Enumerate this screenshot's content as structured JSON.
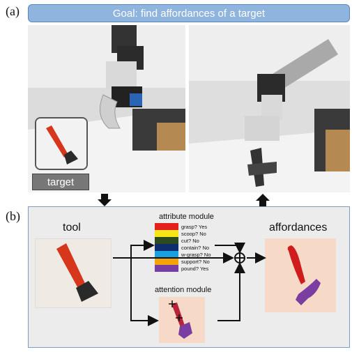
{
  "panels": {
    "a": {
      "letter": "(a)"
    },
    "b": {
      "letter": "(b)"
    }
  },
  "goal": {
    "text": "Goal: find affordances of a target"
  },
  "target": {
    "label": "target"
  },
  "diagram": {
    "tool_label": "tool",
    "attribute_module_label": "attribute module",
    "attention_module_label": "attention module",
    "affordances_label": "affordances",
    "attributes": [
      {
        "text": "grasp? Yes",
        "color": "#e3201b"
      },
      {
        "text": "scoop? No",
        "color": "#f7e419"
      },
      {
        "text": "cut? No",
        "color": "#2d4b1f"
      },
      {
        "text": "contain? No",
        "color": "#0e2d6e"
      },
      {
        "text": "w-grasp? No",
        "color": "#1a9fe0"
      },
      {
        "text": "support? No",
        "color": "#f5a30b"
      },
      {
        "text": "pound? Yes",
        "color": "#7a3ea3"
      }
    ]
  },
  "colors": {
    "accent_blue": "#8fb4dd",
    "affordance_background": "#f6d9c6",
    "grasp_red": "#cf1c1c",
    "pound_purple": "#7a3ea3"
  }
}
